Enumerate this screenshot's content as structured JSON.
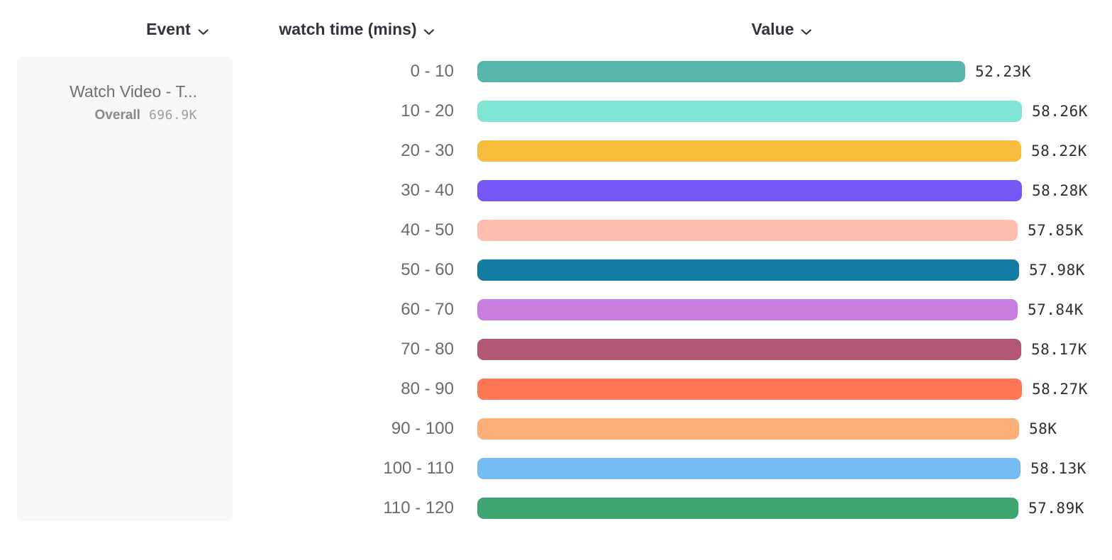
{
  "header": {
    "columns": [
      {
        "label": "Event"
      },
      {
        "label": "watch time (mins)"
      },
      {
        "label": "Value"
      }
    ]
  },
  "event_card": {
    "title": "Watch Video - T...",
    "overall_label": "Overall",
    "overall_value": "696.9K"
  },
  "chart_data": {
    "type": "bar",
    "orientation": "horizontal",
    "title": "",
    "xlabel": "Value",
    "ylabel": "watch time (mins)",
    "xlim": [
      0,
      58.28
    ],
    "grid": false,
    "legend": false,
    "categories": [
      "0 - 10",
      "10 - 20",
      "20 - 30",
      "30 - 40",
      "40 - 50",
      "50 - 60",
      "60 - 70",
      "70 - 80",
      "80 - 90",
      "90 - 100",
      "100 - 110",
      "110 - 120"
    ],
    "values": [
      52.23,
      58.26,
      58.22,
      58.28,
      57.85,
      57.98,
      57.84,
      58.17,
      58.27,
      58.0,
      58.13,
      57.89
    ],
    "value_labels": [
      "52.23K",
      "58.26K",
      "58.22K",
      "58.28K",
      "57.85K",
      "57.98K",
      "57.84K",
      "58.17K",
      "58.27K",
      "58K",
      "58.13K",
      "57.89K"
    ],
    "colors": [
      "#58b5ac",
      "#7fe4d3",
      "#f7bc3c",
      "#7656f5",
      "#ffbdb0",
      "#147ca2",
      "#c87edd",
      "#b25871",
      "#fd7656",
      "#fcae78",
      "#74bcf2",
      "#3da56f"
    ]
  }
}
